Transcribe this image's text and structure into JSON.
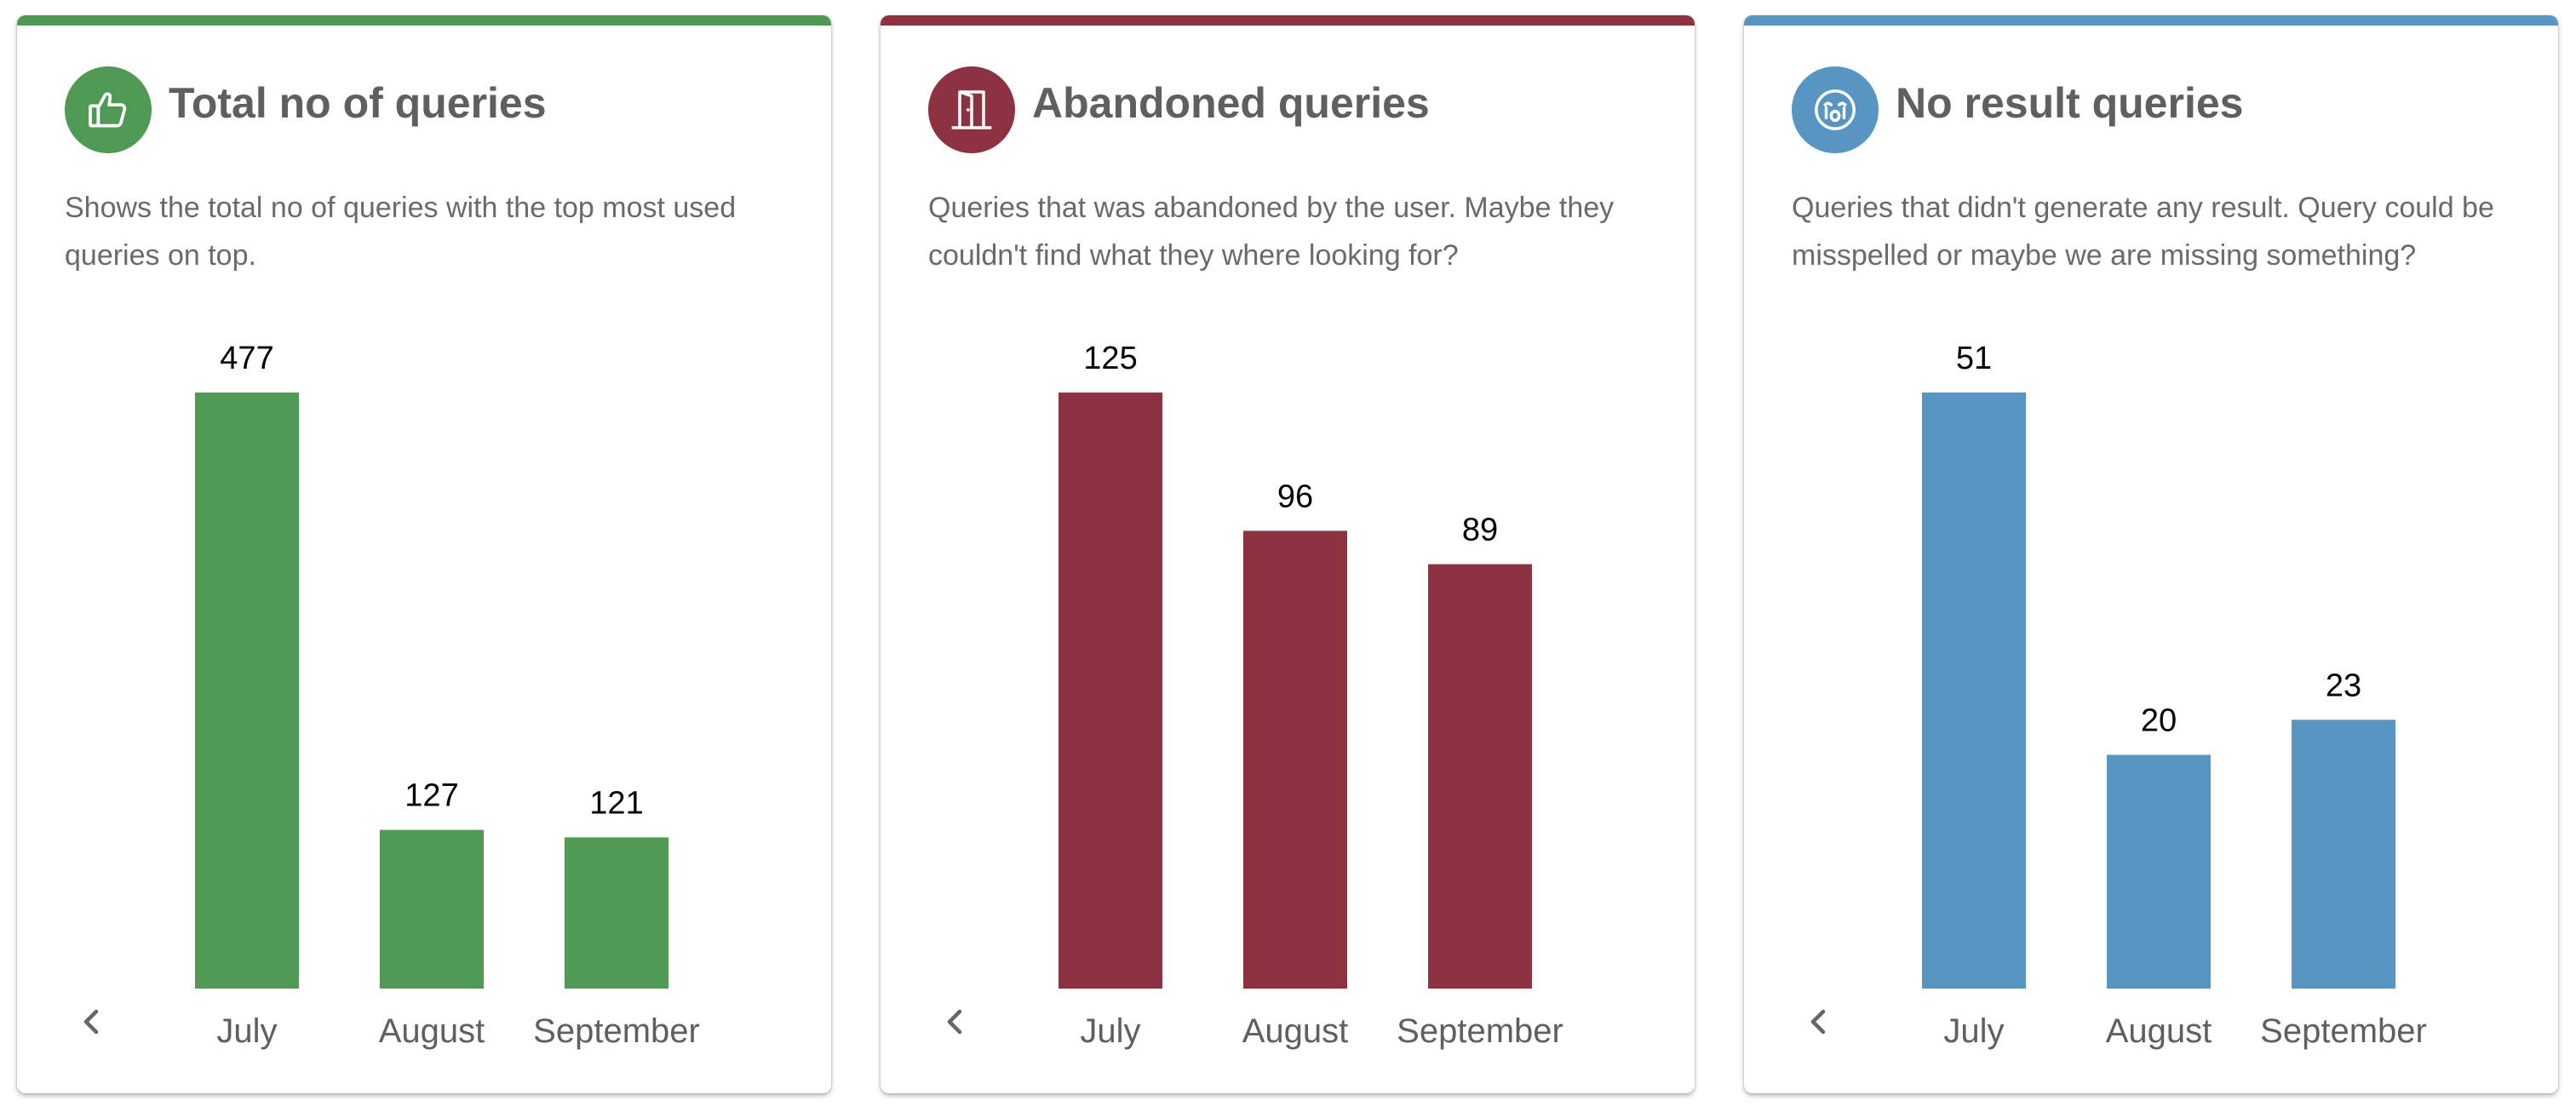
{
  "cards": [
    {
      "title": "Total no of queries",
      "description": "Shows the total no of queries with the top most used queries on top.",
      "icon": "thumbs-up-icon",
      "color": "#4f9a53",
      "chart_data": {
        "type": "bar",
        "categories": [
          "July",
          "August",
          "September"
        ],
        "values": [
          477,
          127,
          121
        ],
        "title": "",
        "xlabel": "",
        "ylabel": "",
        "ylim": [
          0,
          477
        ],
        "grid": false
      }
    },
    {
      "title": "Abandoned queries",
      "description": "Queries that was abandoned by the user. Maybe they couldn't find what they where looking for?",
      "icon": "door-exit-icon",
      "color": "#8c3241",
      "chart_data": {
        "type": "bar",
        "categories": [
          "July",
          "August",
          "September"
        ],
        "values": [
          125,
          96,
          89
        ],
        "title": "",
        "xlabel": "",
        "ylabel": "",
        "ylim": [
          0,
          125
        ],
        "grid": false
      }
    },
    {
      "title": "No result queries",
      "description": "Queries that didn't generate any result. Query could be misspelled or maybe we are missing something?",
      "icon": "crying-face-icon",
      "color": "#5796c2",
      "chart_data": {
        "type": "bar",
        "categories": [
          "July",
          "August",
          "September"
        ],
        "values": [
          51,
          20,
          23
        ],
        "title": "",
        "xlabel": "",
        "ylabel": "",
        "ylim": [
          0,
          51
        ],
        "grid": false
      }
    }
  ]
}
